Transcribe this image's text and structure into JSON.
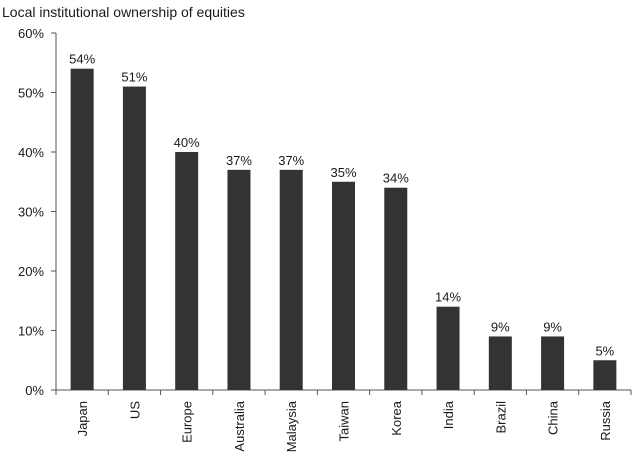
{
  "chart_data": {
    "type": "bar",
    "title": "Local institutional ownership of equities",
    "xlabel": "",
    "ylabel": "",
    "categories": [
      "Japan",
      "US",
      "Europe",
      "Australia",
      "Malaysia",
      "Taiwan",
      "Korea",
      "India",
      "Brazil",
      "China",
      "Russia"
    ],
    "values": [
      54,
      51,
      40,
      37,
      37,
      35,
      34,
      14,
      9,
      9,
      5
    ],
    "data_labels": [
      "54%",
      "51%",
      "40%",
      "37%",
      "37%",
      "35%",
      "34%",
      "14%",
      "9%",
      "9%",
      "5%"
    ],
    "ylim": [
      0,
      60
    ],
    "yticks": [
      0,
      10,
      20,
      30,
      40,
      50,
      60
    ],
    "ytick_labels": [
      "0%",
      "10%",
      "20%",
      "30%",
      "40%",
      "50%",
      "60%"
    ],
    "grid": false,
    "legend": "none",
    "bar_color": "#333333"
  }
}
